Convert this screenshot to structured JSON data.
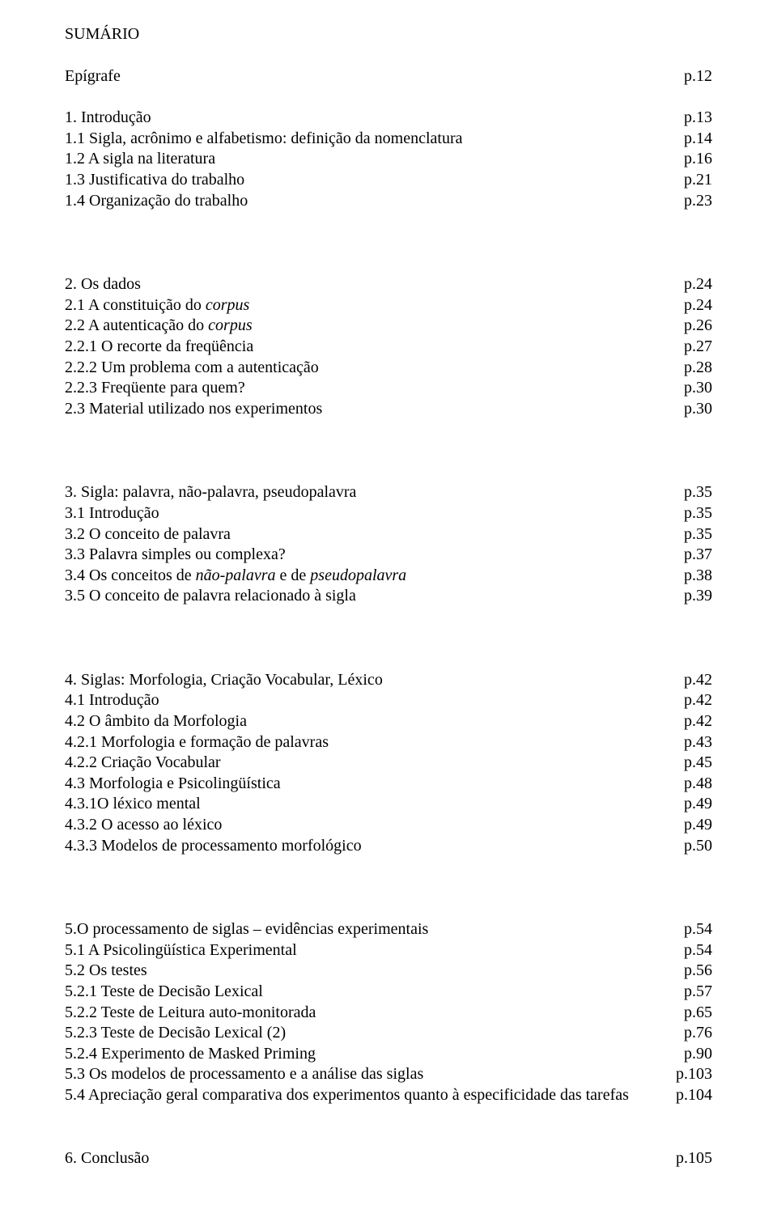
{
  "typography": {
    "font_family": "Times New Roman",
    "font_size_pt": 15,
    "color": "#000000",
    "background": "#ffffff",
    "line_height": 1.28
  },
  "title": "SUMÁRIO",
  "epigraph": {
    "label": "Epígrafe",
    "page": "p.12"
  },
  "sections": [
    {
      "entries": [
        {
          "label": "1. Introdução",
          "page": "p.13"
        },
        {
          "label": "1.1 Sigla, acrônimo e alfabetismo: definição da nomenclatura",
          "page": "p.14"
        },
        {
          "label": "1.2 A sigla na literatura",
          "page": "p.16"
        },
        {
          "label": "1.3 Justificativa do trabalho",
          "page": "p.21"
        },
        {
          "label": "1.4 Organização do trabalho",
          "page": "p.23"
        }
      ]
    },
    {
      "entries": [
        {
          "label": "2. Os dados",
          "page": "p.24"
        },
        {
          "label_pre": "2.1 A constituição do ",
          "label_it": "corpus",
          "label_post": "",
          "page": "p.24"
        },
        {
          "label_pre": "2.2 A autenticação do ",
          "label_it": "corpus",
          "label_post": "",
          "page": "p.26"
        },
        {
          "label": "2.2.1 O recorte da freqüência",
          "page": "p.27"
        },
        {
          "label": "2.2.2 Um problema com a autenticação",
          "page": "p.28"
        },
        {
          "label": "2.2.3 Freqüente para quem?",
          "page": "p.30"
        },
        {
          "label": "2.3 Material utilizado nos experimentos",
          "page": "p.30"
        }
      ]
    },
    {
      "entries": [
        {
          "label": "3. Sigla: palavra, não-palavra, pseudopalavra",
          "page": "p.35"
        },
        {
          "label": "3.1 Introdução",
          "page": "p.35"
        },
        {
          "label": "3.2 O conceito de palavra",
          "page": "p.35"
        },
        {
          "label": "3.3 Palavra simples ou complexa?",
          "page": "p.37"
        },
        {
          "label_pre": "3.4 Os conceitos de ",
          "label_it": "não-palavra",
          "label_mid": " e de ",
          "label_it2": "pseudopalavra",
          "label_post": "",
          "page": "p.38"
        },
        {
          "label": "3.5 O conceito de palavra relacionado à sigla",
          "page": "p.39"
        }
      ]
    },
    {
      "entries": [
        {
          "label": "4. Siglas: Morfologia, Criação Vocabular, Léxico",
          "page": "p.42"
        },
        {
          "label": "4.1 Introdução",
          "page": "p.42"
        },
        {
          "label": "4.2 O âmbito da Morfologia",
          "page": "p.42"
        },
        {
          "label": "4.2.1 Morfologia e formação de palavras",
          "page": "p.43"
        },
        {
          "label": "4.2.2 Criação Vocabular",
          "page": "p.45"
        },
        {
          "label": "4.3 Morfologia e Psicolingüística",
          "page": "p.48"
        },
        {
          "label": "4.3.1O léxico mental",
          "page": "p.49"
        },
        {
          "label": "4.3.2 O acesso ao léxico",
          "page": "p.49"
        },
        {
          "label": "4.3.3 Modelos de processamento morfológico",
          "page": "p.50"
        }
      ]
    },
    {
      "entries": [
        {
          "label": "5.O processamento de siglas – evidências experimentais",
          "page": "p.54"
        },
        {
          "label": "5.1 A Psicolingüística Experimental",
          "page": "p.54"
        },
        {
          "label": "5.2 Os testes",
          "page": "p.56"
        },
        {
          "label": "5.2.1 Teste de Decisão Lexical",
          "page": "p.57"
        },
        {
          "label": "5.2.2 Teste de Leitura auto-monitorada",
          "page": "p.65"
        },
        {
          "label": "5.2.3 Teste de Decisão Lexical (2)",
          "page": "p.76"
        },
        {
          "label": "5.2.4 Experimento de Masked Priming",
          "page": "p.90"
        },
        {
          "label": "5.3 Os modelos de processamento e a análise das siglas",
          "page": "p.103"
        },
        {
          "label": "5.4 Apreciação geral comparativa dos experimentos quanto à especificidade das tarefas",
          "page": "p.104"
        }
      ]
    },
    {
      "entries": [
        {
          "label": "6. Conclusão",
          "page": "p.105"
        }
      ]
    }
  ]
}
